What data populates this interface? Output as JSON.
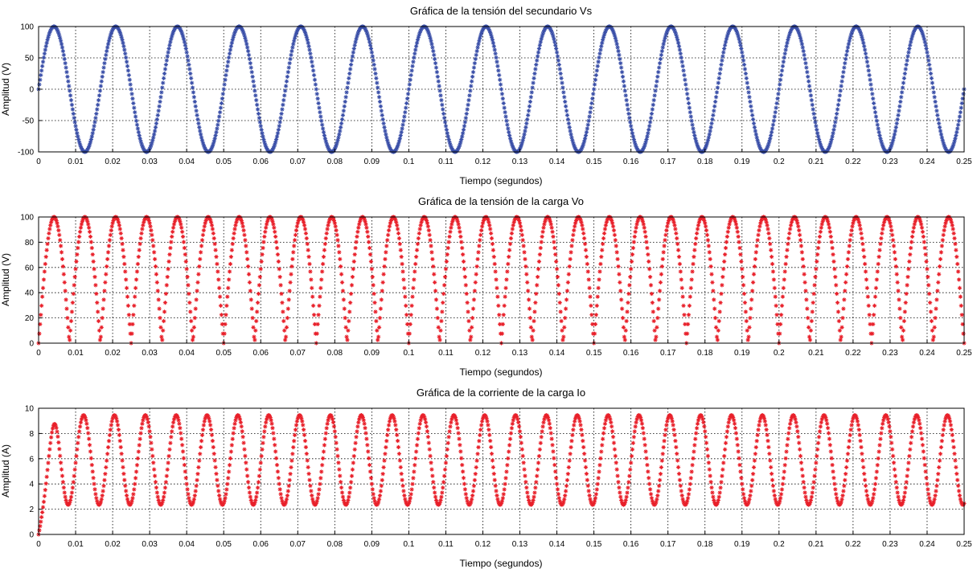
{
  "chart_data": [
    {
      "type": "scatter",
      "title": "Gráfica de la tensión del secundario Vs",
      "xlabel": "Tiempo (segundos)",
      "ylabel": "Amplitud (V)",
      "xlim": [
        0,
        0.25
      ],
      "ylim": [
        -100,
        100
      ],
      "xticks": [
        "0",
        "0.01",
        "0.02",
        "0.03",
        "0.04",
        "0.05",
        "0.06",
        "0.07",
        "0.08",
        "0.09",
        "0.1",
        "0.11",
        "0.12",
        "0.13",
        "0.14",
        "0.15",
        "0.16",
        "0.17",
        "0.18",
        "0.19",
        "0.2",
        "0.21",
        "0.22",
        "0.23",
        "0.24",
        "0.25"
      ],
      "yticks": [
        "-100",
        "-50",
        "0",
        "50",
        "100"
      ],
      "grid": true,
      "marker": "*",
      "color": "#3a4fa8",
      "series": [
        {
          "function": "amplitude*sin(2*pi*frequency*t)",
          "amplitude": 100,
          "frequency": 60,
          "x_range": [
            0,
            0.25
          ],
          "sample_step": 0.0002
        }
      ]
    },
    {
      "type": "scatter",
      "title": "Gráfica de la tensión de la carga Vo",
      "xlabel": "Tiempo (segundos)",
      "ylabel": "Amplitud (V)",
      "xlim": [
        0,
        0.25
      ],
      "ylim": [
        0,
        100
      ],
      "xticks": [
        "0",
        "0.01",
        "0.02",
        "0.03",
        "0.04",
        "0.05",
        "0.06",
        "0.07",
        "0.08",
        "0.09",
        "0.1",
        "0.11",
        "0.12",
        "0.13",
        "0.14",
        "0.15",
        "0.16",
        "0.17",
        "0.18",
        "0.19",
        "0.2",
        "0.21",
        "0.22",
        "0.23",
        "0.24",
        "0.25"
      ],
      "yticks": [
        "0",
        "20",
        "40",
        "60",
        "80",
        "100"
      ],
      "grid": true,
      "marker": "*",
      "color": "#e8202a",
      "series": [
        {
          "function": "amplitude*abs(sin(2*pi*frequency*t))",
          "amplitude": 100,
          "frequency": 60,
          "x_range": [
            0,
            0.25
          ],
          "sample_step": 0.0002
        }
      ]
    },
    {
      "type": "scatter",
      "title": "Gráfica de la corriente de la carga Io",
      "xlabel": "Tiempo (segundos)",
      "ylabel": "Amplitud (A)",
      "xlim": [
        0,
        0.25
      ],
      "ylim": [
        0,
        10
      ],
      "xticks": [
        "0",
        "0.01",
        "0.02",
        "0.03",
        "0.04",
        "0.05",
        "0.06",
        "0.07",
        "0.08",
        "0.09",
        "0.1",
        "0.11",
        "0.12",
        "0.13",
        "0.14",
        "0.15",
        "0.16",
        "0.17",
        "0.18",
        "0.19",
        "0.2",
        "0.21",
        "0.22",
        "0.23",
        "0.24",
        "0.25"
      ],
      "yticks": [
        "0",
        "2",
        "4",
        "6",
        "8",
        "10"
      ],
      "grid": true,
      "marker": "*",
      "color": "#e8202a",
      "series": [
        {
          "function": "center - swing*cos(4*pi*frequency*t) with initial rise",
          "center": 5.9,
          "swing": 3.55,
          "frequency": 60,
          "start_value": 0,
          "rise_time": 0.006,
          "peak": 9.45,
          "trough": 2.35,
          "x_range": [
            0,
            0.25
          ],
          "sample_step": 0.0002
        }
      ]
    }
  ]
}
